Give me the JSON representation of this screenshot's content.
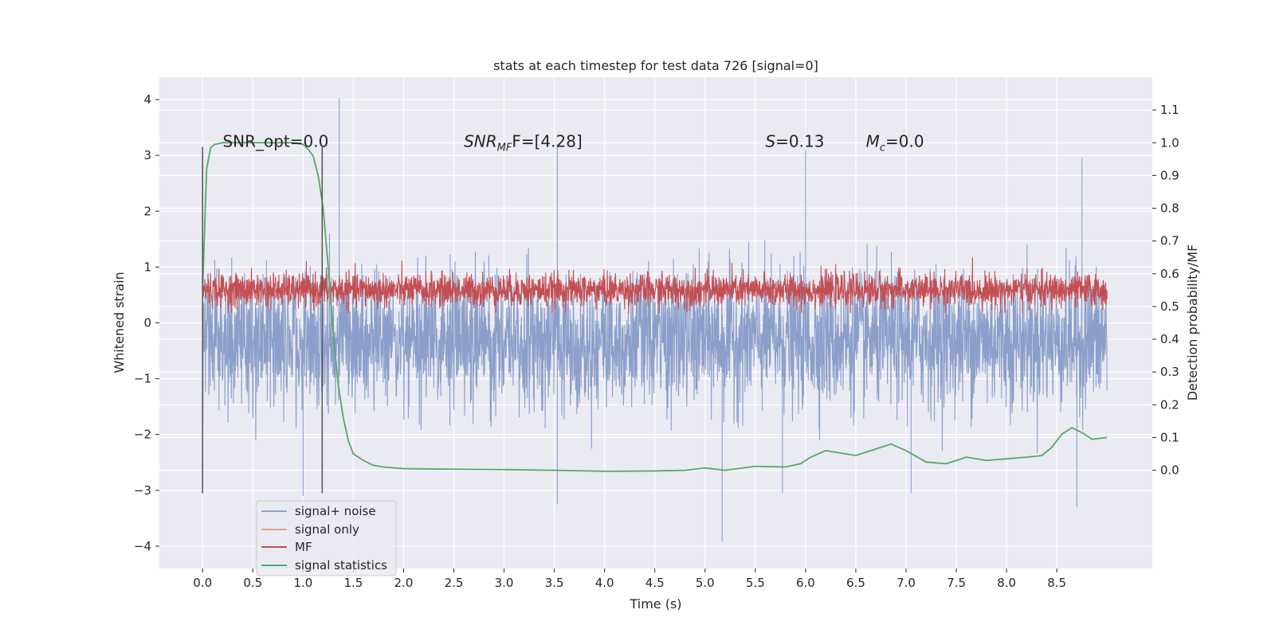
{
  "chart_data": {
    "type": "line",
    "title": "stats at each timestep for test data 726 [signal=0]",
    "xlabel": "Time (s)",
    "ylabel": "Whitened strain",
    "ylabel_right": "Detection probability/MF",
    "xlim": [
      -0.43,
      9.45
    ],
    "ylim": [
      -4.4,
      4.4
    ],
    "ylim_right": [
      -0.3,
      1.2
    ],
    "x_ticks": [
      0.0,
      0.5,
      1.0,
      1.5,
      2.0,
      2.5,
      3.0,
      3.5,
      4.0,
      4.5,
      5.0,
      5.5,
      6.0,
      6.5,
      7.0,
      7.5,
      8.0,
      8.5
    ],
    "x_tick_labels": [
      "0.0",
      "0.5",
      "1.0",
      "1.5",
      "2.0",
      "2.5",
      "3.0",
      "3.5",
      "4.0",
      "4.5",
      "5.0",
      "5.5",
      "6.0",
      "6.5",
      "7.0",
      "7.5",
      "8.0",
      "8.5"
    ],
    "y_ticks": [
      4,
      3,
      2,
      1,
      0,
      -1,
      -2,
      -3,
      -4
    ],
    "y_tick_labels": [
      "4",
      "3",
      "2",
      "1",
      "0",
      "−1",
      "−2",
      "−3",
      "−4"
    ],
    "y_right_ticks": [
      1.1,
      1.0,
      0.9,
      0.8,
      0.7,
      0.6,
      0.5,
      0.4,
      0.3,
      0.2,
      0.1,
      0.0
    ],
    "y_right_tick_labels": [
      "1.1",
      "1.0",
      "0.9",
      "0.8",
      "0.7",
      "0.6",
      "0.5",
      "0.4",
      "0.3",
      "0.2",
      "0.1",
      "0.0"
    ],
    "grid": true,
    "legend_position": "bottom-left",
    "colors": {
      "background": "#eaeaf2",
      "grid": "#ffffff",
      "signal_noise": "#8c9fca",
      "signal_only": "#e8a18a",
      "mf": "#c44e52",
      "stats": "#55a868",
      "vline": "#555555"
    },
    "series": [
      {
        "name": "signal+ noise",
        "key": "signal_noise",
        "style": "noise",
        "x_range": [
          0.0,
          9.0
        ],
        "mean": -0.3,
        "sigma": 0.6,
        "max": 4.02,
        "min": -3.92,
        "peaks": [
          [
            1.36,
            4.02
          ],
          [
            3.53,
            3.2
          ],
          [
            6.0,
            3.1
          ],
          [
            8.75,
            2.95
          ]
        ],
        "troughs": [
          [
            5.17,
            -3.92
          ],
          [
            8.7,
            -3.3
          ],
          [
            3.53,
            -3.25
          ],
          [
            1.0,
            -3.1
          ],
          [
            7.05,
            -3.05
          ],
          [
            5.77,
            -3.05
          ]
        ]
      },
      {
        "name": "signal only",
        "key": "signal_only",
        "style": "flat",
        "x_range": [
          0.0,
          9.0
        ],
        "values": [
          0.0
        ]
      },
      {
        "name": "MF",
        "key": "mf",
        "style": "noise",
        "axis": "right",
        "x_range": [
          0.0,
          9.0
        ],
        "mean": 0.55,
        "sigma": 0.025,
        "max": 0.65,
        "min": 0.48
      },
      {
        "name": "signal statistics",
        "key": "stats",
        "axis": "right",
        "x": [
          0.0,
          0.04,
          0.08,
          0.12,
          0.2,
          0.35,
          0.5,
          0.7,
          0.9,
          1.0,
          1.05,
          1.1,
          1.15,
          1.2,
          1.25,
          1.3,
          1.35,
          1.4,
          1.45,
          1.5,
          1.6,
          1.7,
          1.8,
          2.0,
          2.3,
          2.6,
          3.0,
          3.5,
          4.0,
          4.5,
          4.8,
          5.0,
          5.2,
          5.5,
          5.8,
          5.95,
          6.05,
          6.2,
          6.3,
          6.5,
          6.7,
          6.85,
          7.0,
          7.2,
          7.4,
          7.6,
          7.8,
          8.0,
          8.2,
          8.35,
          8.45,
          8.55,
          8.65,
          8.75,
          8.85,
          9.0
        ],
        "values": [
          0.55,
          0.92,
          0.985,
          0.995,
          1.0,
          1.0,
          1.0,
          1.0,
          1.0,
          0.995,
          0.98,
          0.96,
          0.9,
          0.8,
          0.62,
          0.42,
          0.26,
          0.16,
          0.09,
          0.05,
          0.03,
          0.015,
          0.01,
          0.005,
          0.004,
          0.003,
          0.002,
          0.0,
          -0.003,
          -0.002,
          0.0,
          0.007,
          0.0,
          0.012,
          0.01,
          0.02,
          0.04,
          0.06,
          0.055,
          0.045,
          0.065,
          0.08,
          0.06,
          0.025,
          0.02,
          0.04,
          0.03,
          0.035,
          0.04,
          0.045,
          0.07,
          0.11,
          0.13,
          0.115,
          0.095,
          0.1
        ]
      }
    ],
    "vlines": [
      {
        "x": 0.0,
        "ymin": -3.05,
        "ymax": 3.15
      },
      {
        "x": 1.19,
        "ymin": -3.05,
        "ymax": 3.15
      }
    ],
    "annotations": [
      {
        "x": 0.2,
        "y": 3.25,
        "text": "SNR_opt=0.0",
        "style": "plain"
      },
      {
        "x": 2.6,
        "y": 3.25,
        "main": "SNR",
        "sub": "MF",
        "rest": "F=[4.28]",
        "style": "sub"
      },
      {
        "x": 5.6,
        "y": 3.25,
        "main": "S",
        "rest": "=0.13",
        "style": "italic"
      },
      {
        "x": 6.6,
        "y": 3.25,
        "main": "M",
        "sub": "c",
        "rest": "=0.0",
        "style": "sub"
      }
    ],
    "legend": [
      "signal+ noise",
      "signal only",
      "MF",
      "signal statistics"
    ]
  }
}
